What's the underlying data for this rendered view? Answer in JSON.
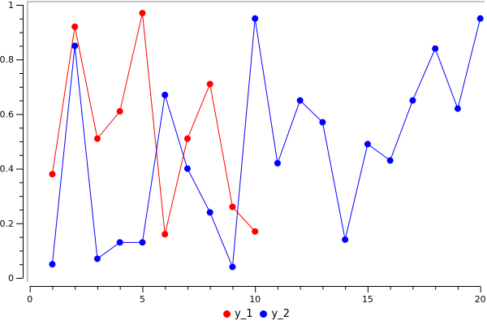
{
  "chart_data": {
    "type": "line",
    "title": "",
    "xlabel": "",
    "ylabel": "",
    "grid": false,
    "marker": "filled-circle",
    "legend_position": "bottom-center",
    "x_axis": {
      "range": [
        0,
        20
      ],
      "ticks_major": [
        0,
        5,
        10,
        15,
        20
      ],
      "tick_labels": [
        "0",
        "5",
        "10",
        "15",
        "20"
      ],
      "minor_step": 1
    },
    "y_axis": {
      "range": [
        0,
        1
      ],
      "ticks_major": [
        0,
        0.2,
        0.4,
        0.6,
        0.8,
        1
      ],
      "tick_labels": [
        "0",
        "0.2",
        "0.4",
        "0.6",
        "0.8",
        "1"
      ],
      "minor_step": 0.05
    },
    "series": [
      {
        "name": "y_1",
        "color": "#ff0000",
        "x": [
          1,
          2,
          3,
          4,
          5,
          6,
          7,
          8,
          9,
          10
        ],
        "values": [
          0.38,
          0.92,
          0.51,
          0.61,
          0.97,
          0.16,
          0.51,
          0.71,
          0.26,
          0.17
        ]
      },
      {
        "name": "y_2",
        "color": "#0000ff",
        "x": [
          1,
          2,
          3,
          4,
          5,
          6,
          7,
          8,
          9,
          10,
          11,
          12,
          13,
          14,
          15,
          16,
          17,
          18,
          19,
          20
        ],
        "values": [
          0.05,
          0.85,
          0.07,
          0.13,
          0.13,
          0.67,
          0.4,
          0.24,
          0.04,
          0.95,
          0.42,
          0.65,
          0.57,
          0.14,
          0.49,
          0.43,
          0.65,
          0.84,
          0.62,
          0.95
        ]
      }
    ],
    "colors": {
      "axis": "#000000",
      "tick_text": "#000000",
      "plot_border": "#c4c4c4",
      "background": "#ffffff"
    }
  }
}
